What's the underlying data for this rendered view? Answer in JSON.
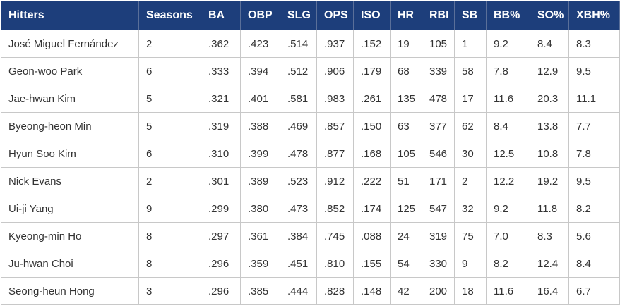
{
  "table": {
    "header": [
      "Hitters",
      "Seasons",
      "BA",
      "OBP",
      "SLG",
      "OPS",
      "ISO",
      "HR",
      "RBI",
      "SB",
      "BB%",
      "SO%",
      "XBH%"
    ],
    "rows": [
      [
        "José Miguel Fernández",
        2,
        ".362",
        ".423",
        ".514",
        ".937",
        ".152",
        19,
        105,
        1,
        "9.2",
        "8.4",
        "8.3"
      ],
      [
        "Geon-woo Park",
        6,
        ".333",
        ".394",
        ".512",
        ".906",
        ".179",
        68,
        339,
        58,
        "7.8",
        "12.9",
        "9.5"
      ],
      [
        "Jae-hwan Kim",
        5,
        ".321",
        ".401",
        ".581",
        ".983",
        ".261",
        135,
        478,
        17,
        "11.6",
        "20.3",
        "11.1"
      ],
      [
        "Byeong-heon Min",
        5,
        ".319",
        ".388",
        ".469",
        ".857",
        ".150",
        63,
        377,
        62,
        "8.4",
        "13.8",
        "7.7"
      ],
      [
        "Hyun Soo Kim",
        6,
        ".310",
        ".399",
        ".478",
        ".877",
        ".168",
        105,
        546,
        30,
        "12.5",
        "10.8",
        "7.8"
      ],
      [
        "Nick Evans",
        2,
        ".301",
        ".389",
        ".523",
        ".912",
        ".222",
        51,
        171,
        2,
        "12.2",
        "19.2",
        "9.5"
      ],
      [
        "Ui-ji Yang",
        9,
        ".299",
        ".380",
        ".473",
        ".852",
        ".174",
        125,
        547,
        32,
        "9.2",
        "11.8",
        "8.2"
      ],
      [
        "Kyeong-min Ho",
        8,
        ".297",
        ".361",
        ".384",
        ".745",
        ".088",
        24,
        319,
        75,
        "7.0",
        "8.3",
        "5.6"
      ],
      [
        "Ju-hwan Choi",
        8,
        ".296",
        ".359",
        ".451",
        ".810",
        ".155",
        54,
        330,
        9,
        "8.2",
        "12.4",
        "8.4"
      ],
      [
        "Seong-heun Hong",
        3,
        ".296",
        ".385",
        ".444",
        ".828",
        ".148",
        42,
        200,
        18,
        "11.6",
        "16.4",
        "6.7"
      ]
    ]
  }
}
